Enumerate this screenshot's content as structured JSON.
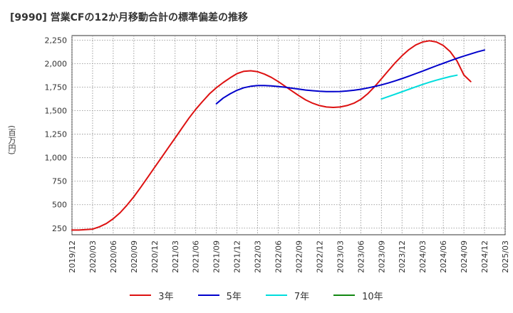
{
  "chart_data": {
    "type": "line",
    "title": "[9990]  営業CFの12か月移動合計の標準偏差の推移",
    "ylabel": "(百万円)",
    "xlabel": "",
    "ylim": [
      180,
      2300
    ],
    "y_ticks": [
      250,
      500,
      750,
      1000,
      1250,
      1500,
      1750,
      2000,
      2250
    ],
    "y_tick_labels": [
      "250",
      "500",
      "750",
      "1,000",
      "1,250",
      "1,500",
      "1,750",
      "2,000",
      "2,250"
    ],
    "x_tick_labels": [
      "2019/12",
      "2020/03",
      "2020/06",
      "2020/09",
      "2020/12",
      "2021/03",
      "2021/06",
      "2021/09",
      "2021/12",
      "2022/03",
      "2022/06",
      "2022/09",
      "2022/12",
      "2023/03",
      "2023/06",
      "2023/09",
      "2023/12",
      "2024/03",
      "2024/06",
      "2024/09",
      "2024/12",
      "2025/03"
    ],
    "grid": true,
    "legend_position": "bottom",
    "series": [
      {
        "name": "3年",
        "color": "#dd1111",
        "start_index": 0,
        "values": [
          230,
          230,
          235,
          240,
          265,
          300,
          350,
          415,
          495,
          585,
          685,
          790,
          895,
          1000,
          1105,
          1210,
          1315,
          1420,
          1515,
          1600,
          1680,
          1745,
          1800,
          1850,
          1895,
          1920,
          1925,
          1915,
          1890,
          1855,
          1810,
          1760,
          1710,
          1660,
          1615,
          1580,
          1555,
          1540,
          1535,
          1540,
          1555,
          1580,
          1620,
          1680,
          1755,
          1840,
          1925,
          2010,
          2085,
          2150,
          2200,
          2232,
          2245,
          2232,
          2195,
          2130,
          2030,
          1880,
          1810
        ]
      },
      {
        "name": "5年",
        "color": "#0000cc",
        "start_index": 21,
        "values": [
          1575,
          1635,
          1680,
          1718,
          1745,
          1760,
          1768,
          1768,
          1765,
          1758,
          1750,
          1740,
          1730,
          1720,
          1713,
          1707,
          1704,
          1703,
          1705,
          1710,
          1718,
          1728,
          1742,
          1758,
          1775,
          1795,
          1818,
          1842,
          1868,
          1895,
          1922,
          1950,
          1978,
          2005,
          2032,
          2058,
          2082,
          2105,
          2127,
          2146
        ]
      },
      {
        "name": "7年",
        "color": "#00dddd",
        "start_index": 45,
        "values": [
          1625,
          1650,
          1676,
          1702,
          1728,
          1754,
          1780,
          1803,
          1825,
          1845,
          1864,
          1878
        ]
      },
      {
        "name": "10年",
        "color": "#118811",
        "start_index": 0,
        "values": []
      }
    ]
  }
}
